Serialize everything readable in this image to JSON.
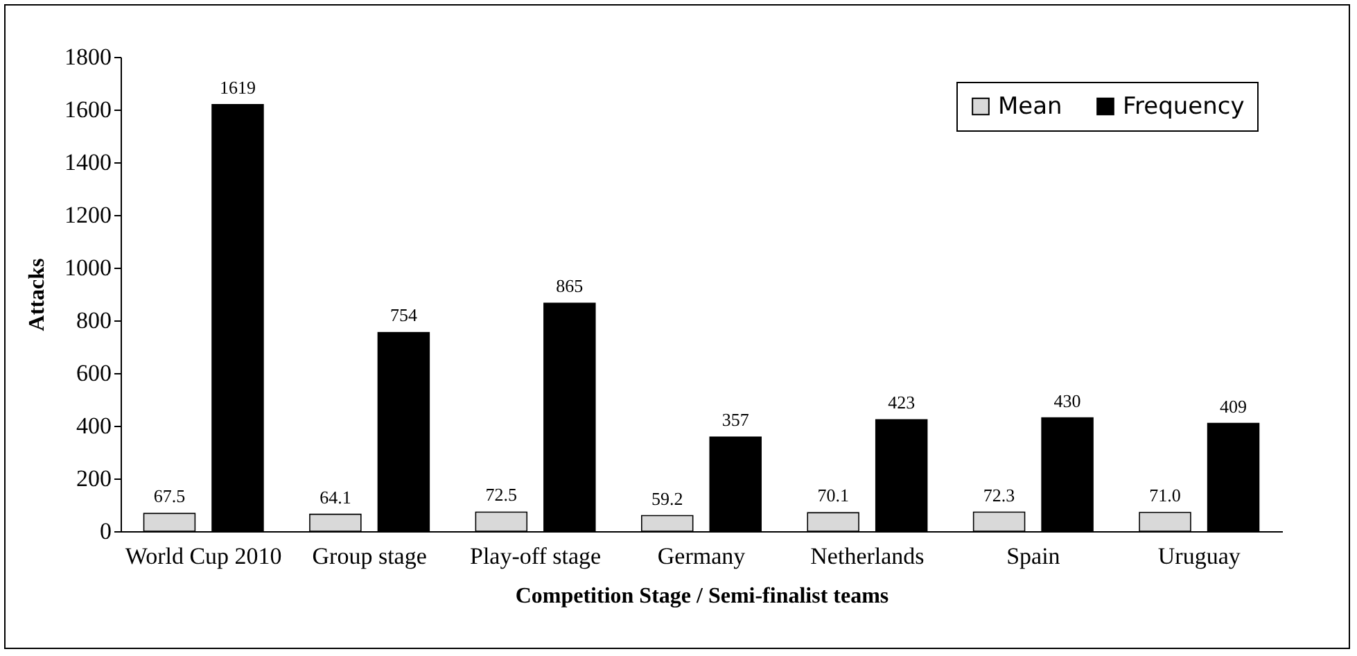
{
  "chart_data": {
    "type": "bar",
    "xlabel": "Competition Stage / Semi-finalist teams",
    "ylabel": "Attacks",
    "categories": [
      "World Cup 2010",
      "Group stage",
      "Play-off stage",
      "Germany",
      "Netherlands",
      "Spain",
      "Uruguay"
    ],
    "series": [
      {
        "name": "Mean",
        "color": "#d9d9d9",
        "values": [
          67.5,
          64.1,
          72.5,
          59.2,
          70.1,
          72.3,
          71.0
        ],
        "value_labels": [
          "67.5",
          "64.1",
          "72.5",
          "59.2",
          "70.1",
          "72.3",
          "71.0"
        ]
      },
      {
        "name": "Frequency",
        "color": "#000000",
        "values": [
          1619,
          754,
          865,
          357,
          423,
          430,
          409
        ],
        "value_labels": [
          "1619",
          "754",
          "865",
          "357",
          "423",
          "430",
          "409"
        ]
      }
    ],
    "ylim": [
      0,
      1800
    ],
    "yticks": [
      0,
      200,
      400,
      600,
      800,
      1000,
      1200,
      1400,
      1600,
      1800
    ],
    "grid": false,
    "legend": "top right"
  }
}
